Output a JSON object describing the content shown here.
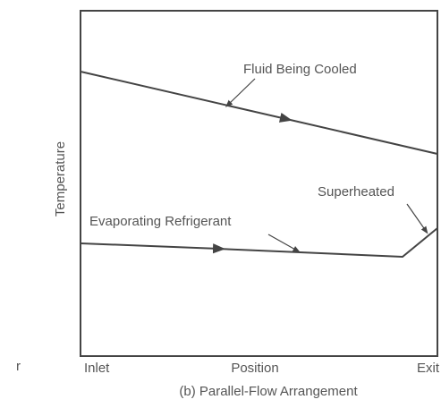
{
  "diagram": {
    "y_axis_label": "Temperature",
    "x_labels": {
      "start": "Inlet",
      "middle": "Position",
      "end": "Exit"
    },
    "curves": [
      {
        "label": "Fluid Being Cooled"
      },
      {
        "label": "Evaporating Refrigerant"
      },
      {
        "label": "Superheated"
      }
    ],
    "stray_mark": "r",
    "caption": "(b) Parallel-Flow Arrangement"
  }
}
